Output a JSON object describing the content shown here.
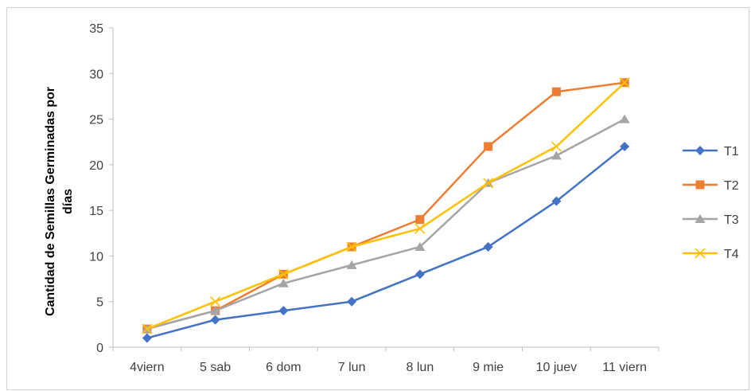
{
  "chart_data": {
    "type": "line",
    "categories": [
      "4viern",
      "5 sab",
      "6 dom",
      "7 lun",
      "8 lun",
      "9 mie",
      "10 juev",
      "11 viern"
    ],
    "series": [
      {
        "name": "T1",
        "color": "#4472C4",
        "marker": "diamond",
        "values": [
          1,
          3,
          4,
          5,
          8,
          11,
          16,
          22
        ]
      },
      {
        "name": "T2",
        "color": "#ED7D31",
        "marker": "square",
        "values": [
          2,
          4,
          8,
          11,
          14,
          22,
          28,
          29
        ]
      },
      {
        "name": "T3",
        "color": "#A5A5A5",
        "marker": "triangle",
        "values": [
          2,
          4,
          7,
          9,
          11,
          18,
          21,
          25
        ]
      },
      {
        "name": "T4",
        "color": "#FFC000",
        "marker": "x",
        "values": [
          2,
          5,
          8,
          11,
          13,
          18,
          22,
          29
        ]
      }
    ],
    "yticks": [
      0,
      5,
      10,
      15,
      20,
      25,
      30,
      35
    ],
    "ylim": [
      0,
      35
    ],
    "ylabel_lines": [
      "Cantidad de Semillas Germinadas por",
      "días"
    ],
    "xlabel": "",
    "grid": false,
    "legend": "right"
  }
}
